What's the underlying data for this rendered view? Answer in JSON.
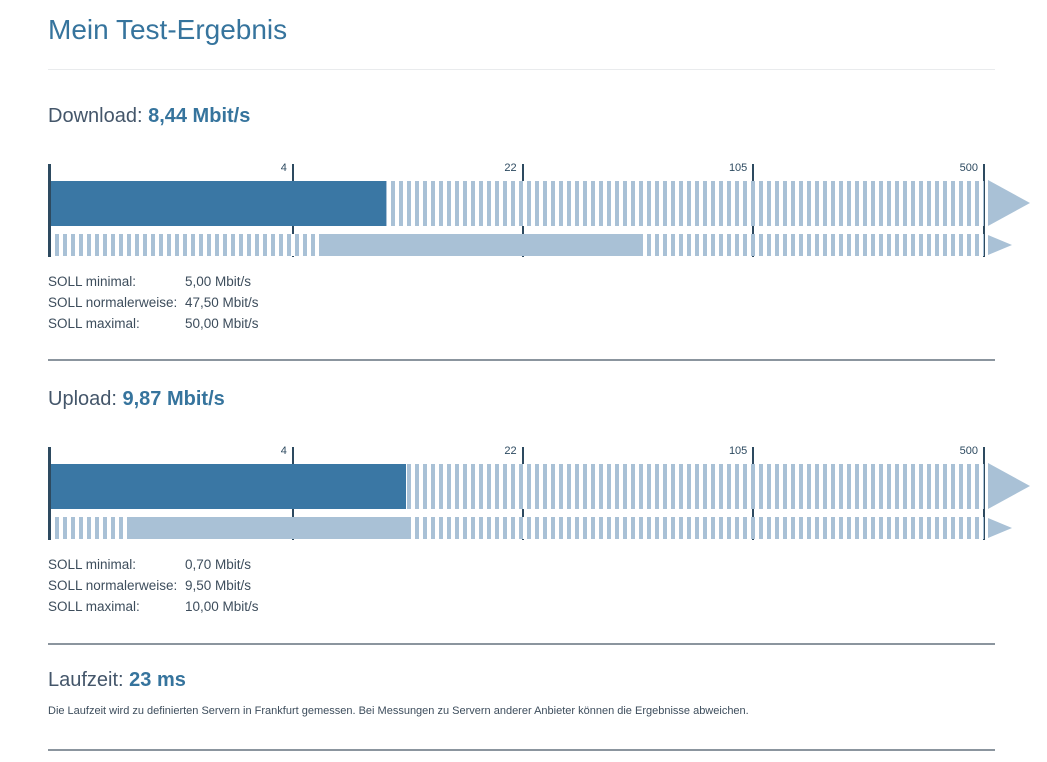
{
  "page": {
    "title": "Mein Test-Ergebnis"
  },
  "colors": {
    "heading": "#36749d",
    "section_label": "#44566a",
    "text": "#3d4d5c",
    "bar_dark": "#3a77a4",
    "bar_light": "#a9c1d6",
    "tick": "#2d4a60",
    "separator": "#8b959e",
    "separator_light": "#e9ebed"
  },
  "download": {
    "label": "Download:",
    "value": "8,44 Mbit/s",
    "soll": [
      {
        "label": "SOLL minimal:",
        "value": "5,00 Mbit/s"
      },
      {
        "label": "SOLL normalerweise:",
        "value": "47,50 Mbit/s"
      },
      {
        "label": "SOLL maximal:",
        "value": "50,00 Mbit/s"
      }
    ]
  },
  "upload": {
    "label": "Upload:",
    "value": "9,87 Mbit/s",
    "soll": [
      {
        "label": "SOLL minimal:",
        "value": "0,70 Mbit/s"
      },
      {
        "label": "SOLL normalerweise:",
        "value": "9,50 Mbit/s"
      },
      {
        "label": "SOLL maximal:",
        "value": "10,00 Mbit/s"
      }
    ]
  },
  "latency": {
    "label": "Laufzeit:",
    "value": "23 ms",
    "note": "Die Laufzeit wird zu definierten Servern in Frankfurt gemessen. Bei Messungen zu Servern anderer Anbieter können die Ergebnisse abweichen."
  },
  "chart_data": [
    {
      "type": "bar",
      "title": "Download",
      "unit": "Mbit/s",
      "measured": 8.44,
      "soll_minimal": 5.0,
      "soll_normalerweise": 47.5,
      "soll_maximal": 50.0,
      "scale_ticks": [
        {
          "label": "",
          "percent": 0
        },
        {
          "label": "4",
          "percent": 26.0
        },
        {
          "label": "22",
          "percent": 50.6
        },
        {
          "label": "105",
          "percent": 75.3
        },
        {
          "label": "500",
          "percent": 100
        }
      ],
      "measured_percent": 35.9,
      "soll_min_percent": 28.9,
      "soll_max_percent": 63.5
    },
    {
      "type": "bar",
      "title": "Upload",
      "unit": "Mbit/s",
      "measured": 9.87,
      "soll_minimal": 0.7,
      "soll_normalerweise": 9.5,
      "soll_maximal": 10.0,
      "scale_ticks": [
        {
          "label": "",
          "percent": 0
        },
        {
          "label": "4",
          "percent": 26.0
        },
        {
          "label": "22",
          "percent": 50.6
        },
        {
          "label": "105",
          "percent": 75.3
        },
        {
          "label": "500",
          "percent": 100
        }
      ],
      "measured_percent": 38.1,
      "soll_min_percent": 8.1,
      "soll_max_percent": 38.5
    }
  ]
}
